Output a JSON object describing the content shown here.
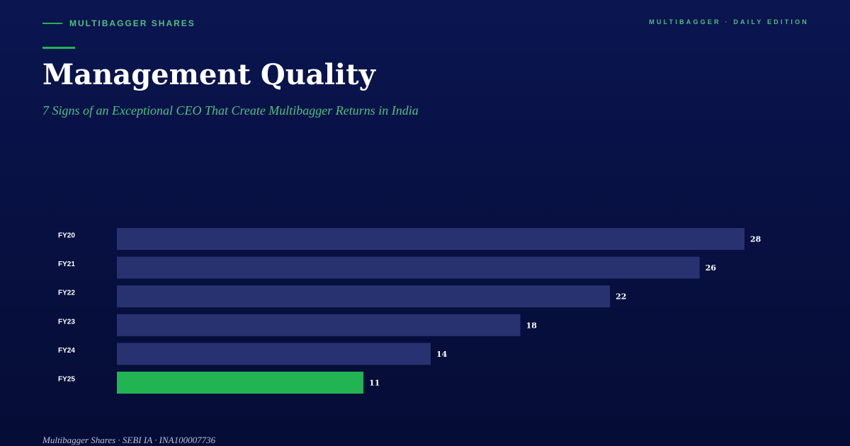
{
  "header": {
    "brand": "MULTIBAGGER SHARES",
    "edition": "MULTIBAGGER · DAILY EDITION"
  },
  "title": "Management Quality",
  "subtitle": "7 Signs of an Exceptional CEO That Create Multibagger Returns in India",
  "footer": "Multibagger Shares · SEBI IA · INA100007736",
  "colors": {
    "background": "#081246",
    "accent": "#22b352",
    "bar": "#283270",
    "highlight_bar": "#22b352",
    "label": "#ffffff"
  },
  "chart_data": {
    "type": "bar",
    "orientation": "horizontal",
    "categories": [
      "FY20",
      "FY21",
      "FY22",
      "FY23",
      "FY24",
      "FY25"
    ],
    "values": [
      28,
      26,
      22,
      18,
      14,
      11
    ],
    "highlight_category": "FY25",
    "title": "",
    "xlabel": "",
    "ylabel": "",
    "xlim": [
      0,
      28
    ],
    "grid": false,
    "legend": "none"
  }
}
